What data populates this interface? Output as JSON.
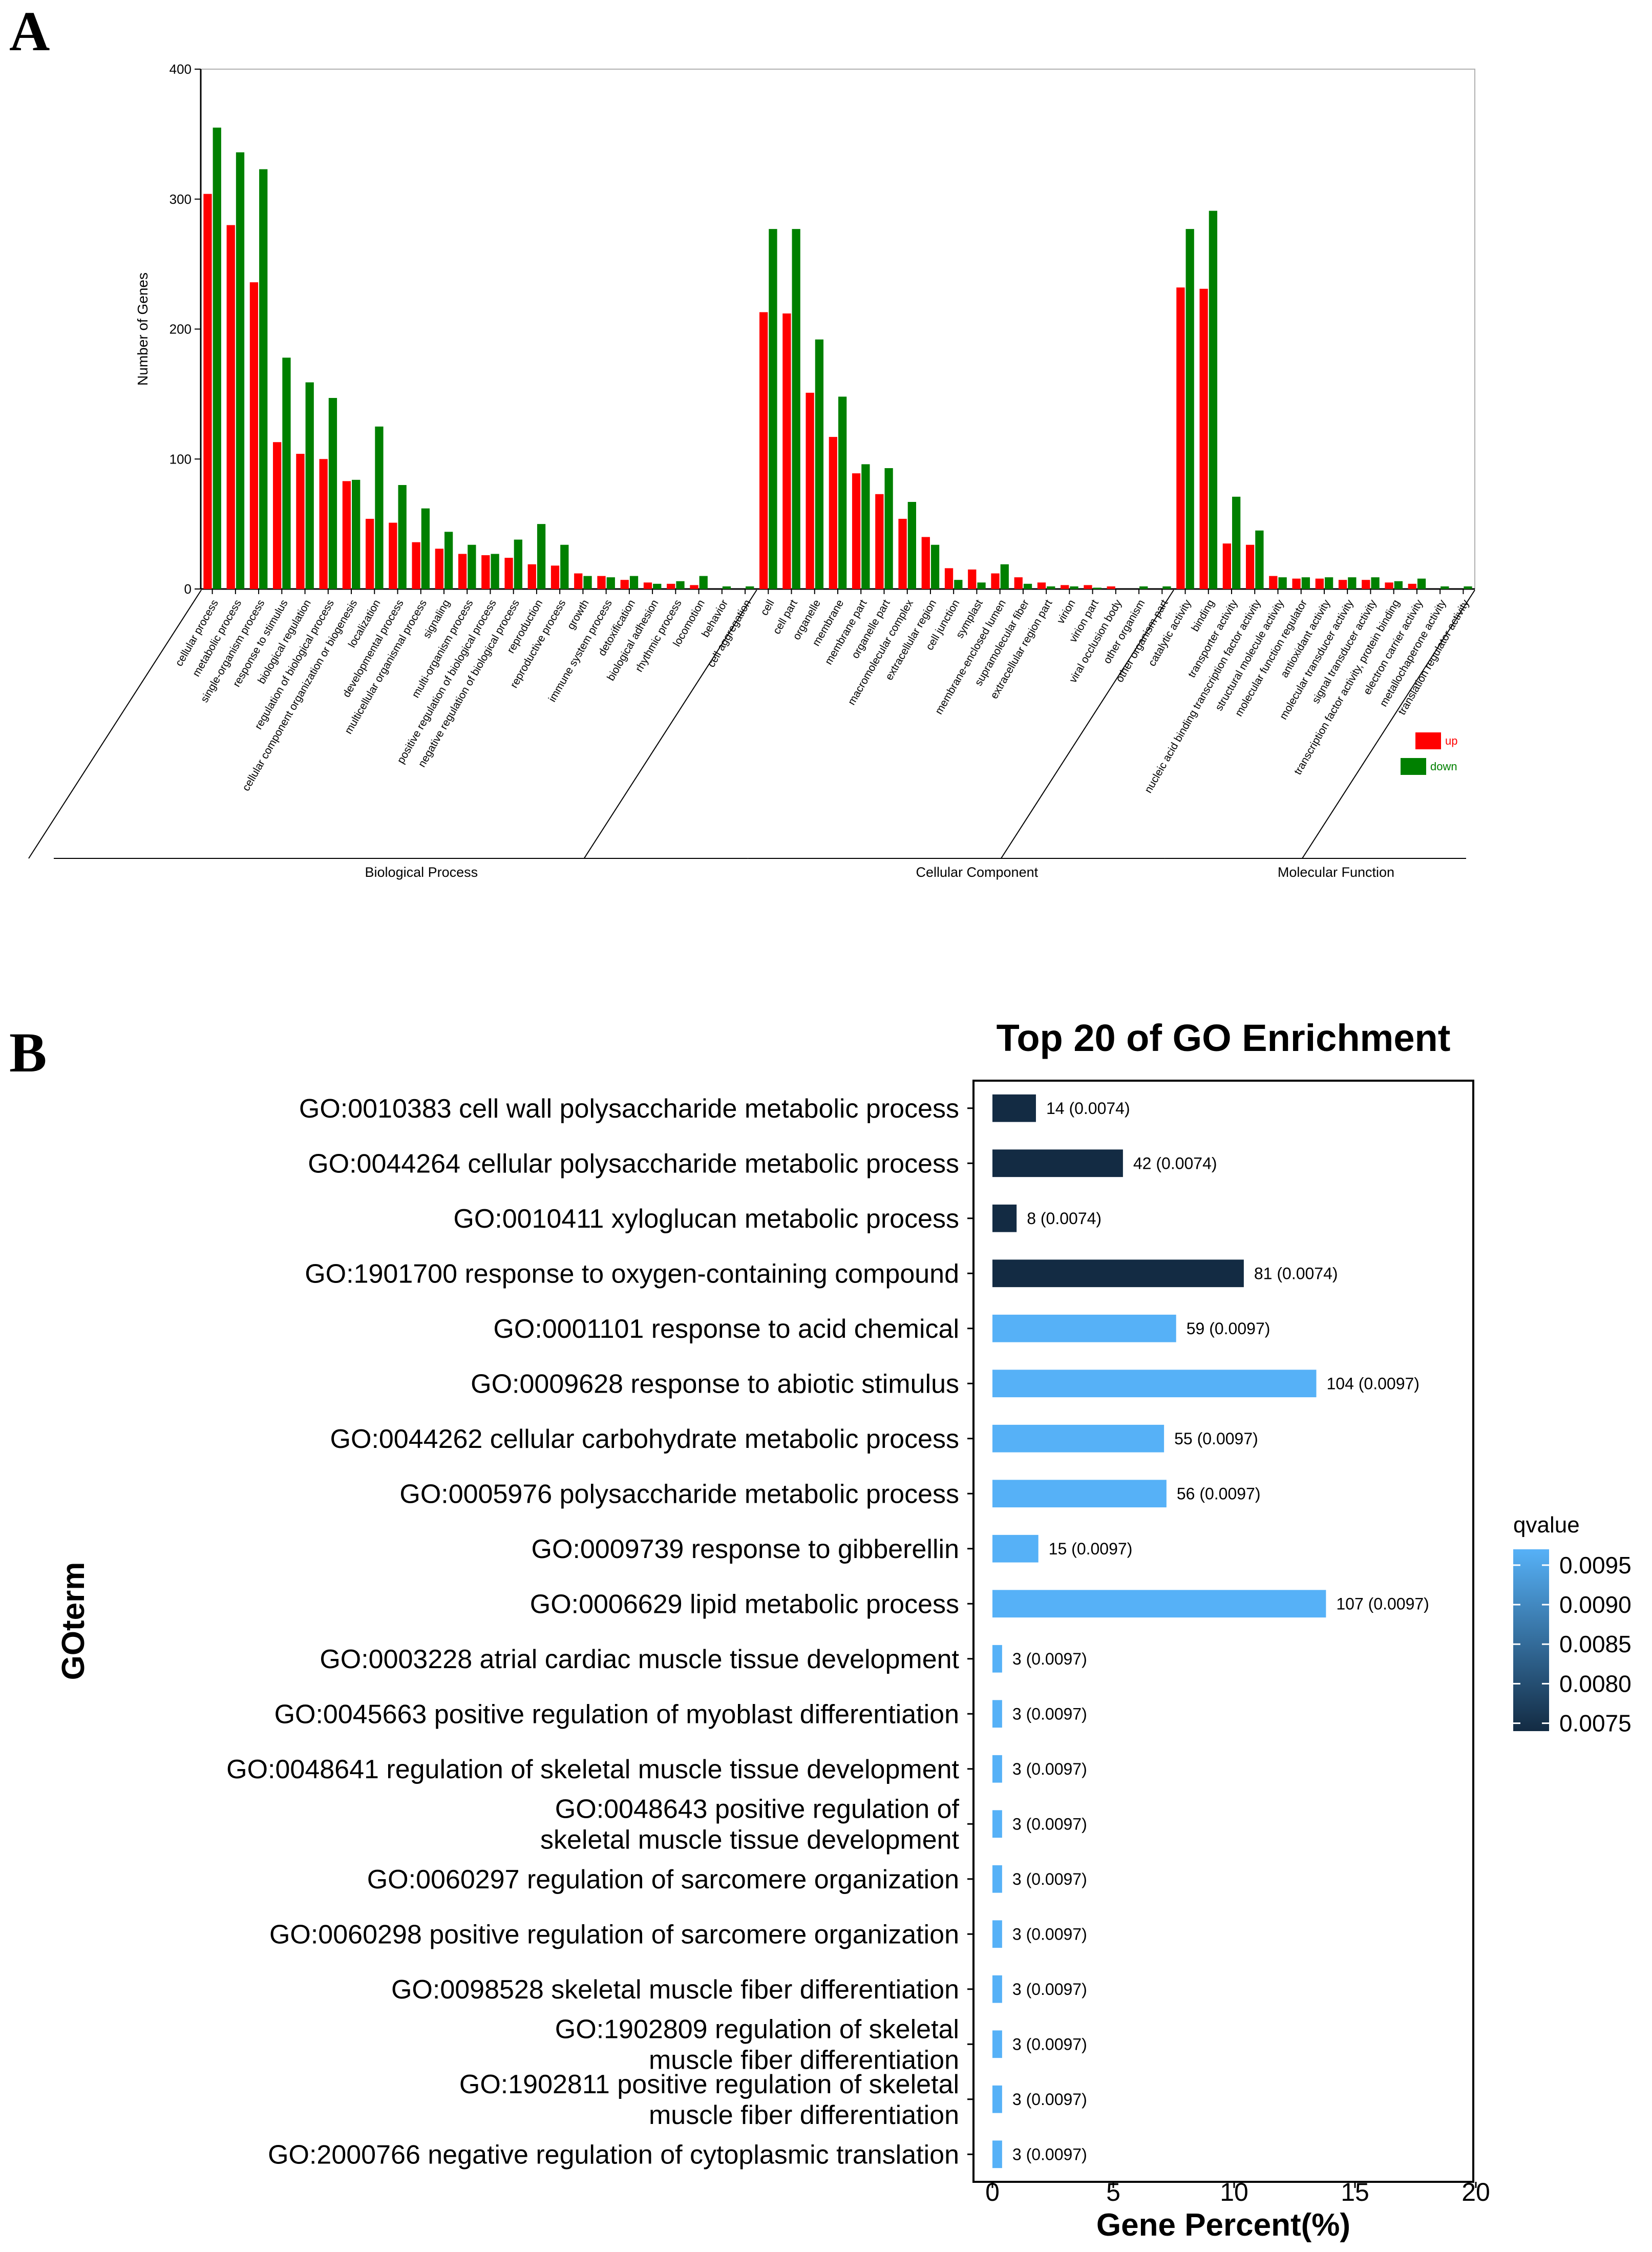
{
  "panel_a": {
    "letter": "A"
  },
  "panel_b": {
    "letter": "B"
  },
  "colors": {
    "up": "#ff0000",
    "down": "#008000",
    "q_low": "#132b43",
    "q_high": "#56b1f7"
  },
  "chart_data": [
    {
      "type": "bar",
      "panel": "A",
      "title": "",
      "xlabel": "",
      "ylabel": "Number of Genes",
      "ylim": [
        0,
        400
      ],
      "yticks": [
        0,
        100,
        200,
        300,
        400
      ],
      "legend": [
        "up",
        "down"
      ],
      "legend_position": "bottom-right",
      "groups": [
        {
          "name": "Biological Process",
          "categories": [
            "cellular process",
            "metabolic process",
            "single-organism process",
            "response to stimulus",
            "biological regulation",
            "regulation of biological process",
            "cellular component organization or biogenesis",
            "localization",
            "developmental process",
            "multicellular organismal process",
            "signaling",
            "multi-organism process",
            "positive regulation of biological process",
            "negative regulation of biological process",
            "reproduction",
            "reproductive process",
            "growth",
            "immune system process",
            "detoxification",
            "biological adhesion",
            "rhythmic process",
            "locomotion",
            "behavior",
            "cell aggregation"
          ]
        },
        {
          "name": "Cellular Component",
          "categories": [
            "cell",
            "cell part",
            "organelle",
            "membrane",
            "membrane part",
            "organelle part",
            "macromolecular complex",
            "extracellular region",
            "cell junction",
            "symplast",
            "membrane-enclosed lumen",
            "supramolecular fiber",
            "extracellular region part",
            "virion",
            "virion part",
            "viral occlusion body",
            "other organism",
            "other organism part"
          ]
        },
        {
          "name": "Molecular Function",
          "categories": [
            "catalytic activity",
            "binding",
            "transporter activity",
            "nucleic acid binding transcription factor activity",
            "structural molecule activity",
            "molecular function regulator",
            "antioxidant activity",
            "molecular transducer activity",
            "signal transducer activity",
            "transcription factor activity, protein binding",
            "electron carrier activity",
            "metallochaperone activity",
            "translation regulator activity"
          ]
        }
      ],
      "series": [
        {
          "name": "up",
          "values": [
            304,
            280,
            236,
            113,
            104,
            100,
            83,
            54,
            51,
            36,
            31,
            27,
            26,
            24,
            19,
            18,
            12,
            10,
            7,
            5,
            4,
            3,
            0,
            0,
            213,
            212,
            151,
            117,
            89,
            73,
            54,
            40,
            16,
            15,
            12,
            9,
            5,
            3,
            3,
            2,
            0,
            0,
            232,
            231,
            35,
            34,
            10,
            8,
            8,
            7,
            7,
            5,
            4,
            0,
            0
          ]
        },
        {
          "name": "down",
          "values": [
            355,
            336,
            323,
            178,
            159,
            147,
            84,
            125,
            80,
            62,
            44,
            34,
            27,
            38,
            50,
            34,
            10,
            9,
            10,
            4,
            6,
            10,
            2,
            2,
            277,
            277,
            192,
            148,
            96,
            93,
            67,
            34,
            7,
            5,
            19,
            4,
            2,
            2,
            1,
            0,
            2,
            2,
            277,
            291,
            71,
            45,
            9,
            9,
            9,
            9,
            9,
            6,
            8,
            2,
            2
          ]
        }
      ]
    },
    {
      "type": "bar",
      "panel": "B",
      "title": "Top 20 of GO Enrichment",
      "xlabel": "Gene Percent(%)",
      "ylabel": "GOterm",
      "xlim": [
        0,
        20
      ],
      "xticks": [
        0,
        5,
        10,
        15,
        20
      ],
      "legend_title": "qvalue",
      "legend_ticks": [
        "0.0095",
        "0.0090",
        "0.0085",
        "0.0080",
        "0.0075"
      ],
      "legend_range": [
        0.0074,
        0.0097
      ],
      "terms": [
        {
          "lines": [
            "GO:0010383 cell wall polysaccharide metabolic process"
          ],
          "percent": 1.8,
          "label": "14 (0.0074)",
          "qvalue": 0.0074
        },
        {
          "lines": [
            "GO:0044264 cellular polysaccharide metabolic process"
          ],
          "percent": 5.4,
          "label": "42 (0.0074)",
          "qvalue": 0.0074
        },
        {
          "lines": [
            "GO:0010411 xyloglucan metabolic process"
          ],
          "percent": 1.0,
          "label": "8 (0.0074)",
          "qvalue": 0.0074
        },
        {
          "lines": [
            "GO:1901700 response to oxygen-containing compound"
          ],
          "percent": 10.4,
          "label": "81 (0.0074)",
          "qvalue": 0.0074
        },
        {
          "lines": [
            "GO:0001101 response to acid chemical"
          ],
          "percent": 7.6,
          "label": "59 (0.0097)",
          "qvalue": 0.0097
        },
        {
          "lines": [
            "GO:0009628 response to abiotic stimulus"
          ],
          "percent": 13.4,
          "label": "104 (0.0097)",
          "qvalue": 0.0097
        },
        {
          "lines": [
            "GO:0044262 cellular carbohydrate metabolic process"
          ],
          "percent": 7.1,
          "label": "55 (0.0097)",
          "qvalue": 0.0097
        },
        {
          "lines": [
            "GO:0005976 polysaccharide metabolic process"
          ],
          "percent": 7.2,
          "label": "56 (0.0097)",
          "qvalue": 0.0097
        },
        {
          "lines": [
            "GO:0009739 response to gibberellin"
          ],
          "percent": 1.9,
          "label": "15 (0.0097)",
          "qvalue": 0.0097
        },
        {
          "lines": [
            "GO:0006629 lipid metabolic process"
          ],
          "percent": 13.8,
          "label": "107 (0.0097)",
          "qvalue": 0.0097
        },
        {
          "lines": [
            "GO:0003228 atrial cardiac muscle tissue development"
          ],
          "percent": 0.4,
          "label": "3 (0.0097)",
          "qvalue": 0.0097
        },
        {
          "lines": [
            "GO:0045663 positive regulation of myoblast differentiation"
          ],
          "percent": 0.4,
          "label": "3 (0.0097)",
          "qvalue": 0.0097
        },
        {
          "lines": [
            "GO:0048641 regulation of skeletal muscle tissue development"
          ],
          "percent": 0.4,
          "label": "3 (0.0097)",
          "qvalue": 0.0097
        },
        {
          "lines": [
            "GO:0048643 positive regulation of",
            "skeletal muscle tissue development"
          ],
          "percent": 0.4,
          "label": "3 (0.0097)",
          "qvalue": 0.0097
        },
        {
          "lines": [
            "GO:0060297 regulation of sarcomere organization"
          ],
          "percent": 0.4,
          "label": "3 (0.0097)",
          "qvalue": 0.0097
        },
        {
          "lines": [
            "GO:0060298 positive regulation of sarcomere organization"
          ],
          "percent": 0.4,
          "label": "3 (0.0097)",
          "qvalue": 0.0097
        },
        {
          "lines": [
            "GO:0098528 skeletal muscle fiber differentiation"
          ],
          "percent": 0.4,
          "label": "3 (0.0097)",
          "qvalue": 0.0097
        },
        {
          "lines": [
            "GO:1902809 regulation of skeletal",
            "muscle fiber differentiation"
          ],
          "percent": 0.4,
          "label": "3 (0.0097)",
          "qvalue": 0.0097
        },
        {
          "lines": [
            "GO:1902811 positive regulation of skeletal",
            "muscle fiber differentiation"
          ],
          "percent": 0.4,
          "label": "3 (0.0097)",
          "qvalue": 0.0097
        },
        {
          "lines": [
            "GO:2000766 negative regulation of cytoplasmic translation"
          ],
          "percent": 0.4,
          "label": "3 (0.0097)",
          "qvalue": 0.0097
        }
      ]
    }
  ]
}
